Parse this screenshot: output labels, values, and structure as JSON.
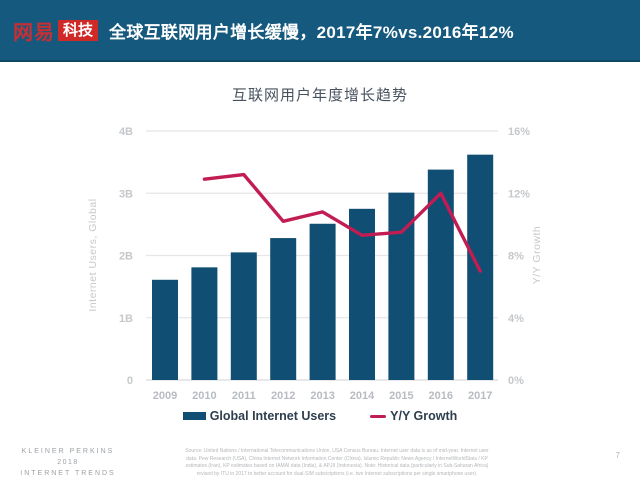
{
  "header": {
    "logo_brand": "网易",
    "logo_sub": "科技",
    "title": "全球互联网用户增长缓慢，2017年7%vs.2016年12%"
  },
  "chart_data": {
    "type": "bar",
    "title": "互联网用户年度增长趋势",
    "categories": [
      "2009",
      "2010",
      "2011",
      "2012",
      "2013",
      "2014",
      "2015",
      "2016",
      "2017"
    ],
    "series": [
      {
        "name": "Global Internet Users",
        "type": "bar",
        "unit": "B",
        "values": [
          1.61,
          1.81,
          2.05,
          2.28,
          2.51,
          2.75,
          3.01,
          3.38,
          3.62
        ]
      },
      {
        "name": "Y/Y Growth",
        "type": "line",
        "unit": "%",
        "values": [
          null,
          12.9,
          13.2,
          10.2,
          10.8,
          9.3,
          9.5,
          12.0,
          7.0
        ]
      }
    ],
    "left_axis": {
      "label": "Internet Users, Global",
      "ticks": [
        "0",
        "1B",
        "2B",
        "3B",
        "4B"
      ],
      "range": [
        0,
        4
      ]
    },
    "right_axis": {
      "label": "Y/Y Growth",
      "ticks": [
        "0%",
        "4%",
        "8%",
        "12%",
        "16%"
      ],
      "range": [
        0,
        16
      ]
    },
    "colors": {
      "bar": "#114E73",
      "line": "#C21D52",
      "grid": "#E4E6E8",
      "baseline": "#D7DADC"
    },
    "legend_position": "bottom",
    "grid": true
  },
  "footer": {
    "brand_lines": [
      "KLEINER PERKINS",
      "2018",
      "INTERNET TRENDS"
    ],
    "source_lines": [
      "Source: United Nations / International Telecommunications Union, USA Census Bureau. Internet user data is as of mid-year. Internet user",
      "data: Pew Research (USA), China Internet Network Information Center (China), Islamic Republic News Agency / InternetWorldStats / KP",
      "estimates (Iran), KP estimates based on IAMAI data (India), & APJII (Indonesia).  Note: Historical data (particularly in Sub-Saharan Africa)",
      "revised by ITU in 2017 to better account for dual-SIM subscriptions (i.e. two Internet subscriptions per single smartphone user)."
    ],
    "page_number": "7"
  }
}
